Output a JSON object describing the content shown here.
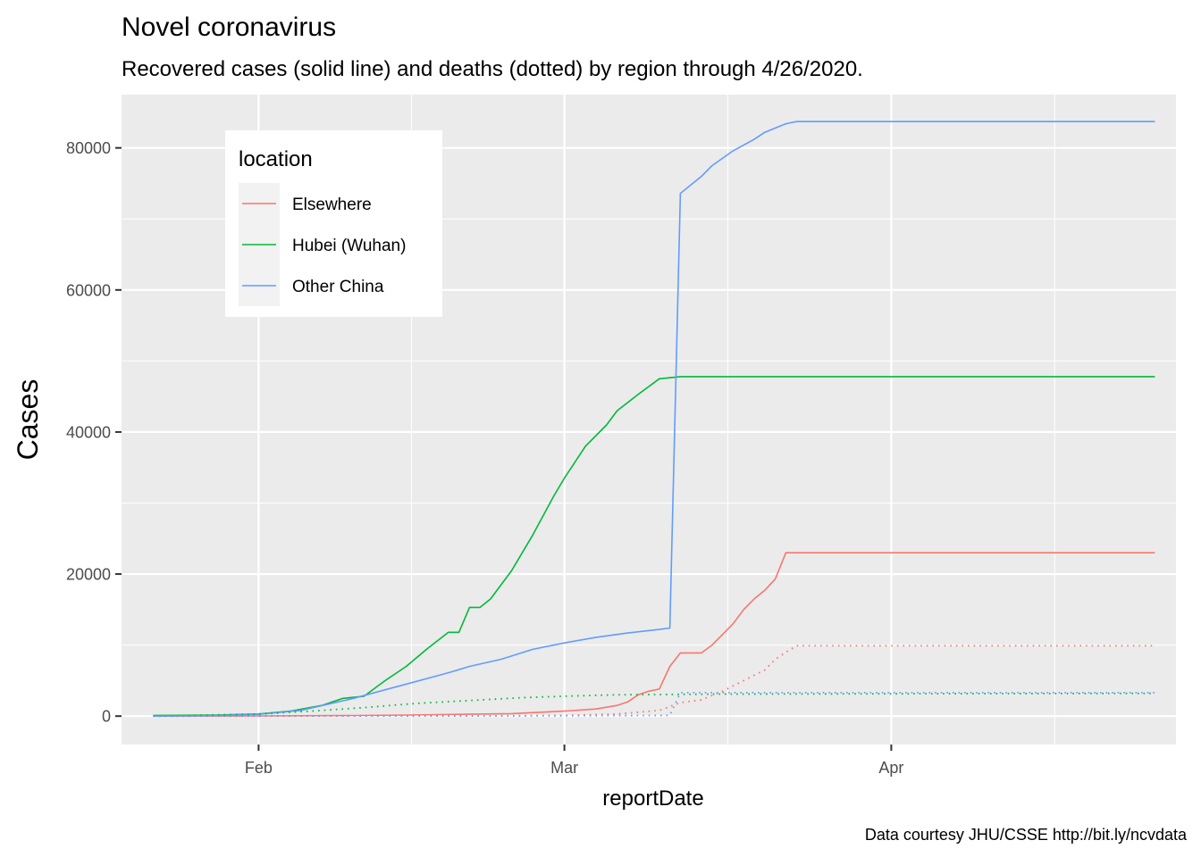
{
  "chart_data": {
    "type": "line",
    "title": "Novel coronavirus",
    "subtitle": "Recovered cases (solid line) and deaths (dotted) by region through 4/26/2020.",
    "xlabel": "reportDate",
    "ylabel": "Cases",
    "caption": "Data courtesy JHU/CSSE http://bit.ly/ncvdata",
    "legend_title": "location",
    "legend_position": "top-left inside",
    "grid": true,
    "xlim": [
      "2020-01-19",
      "2020-04-28"
    ],
    "ylim": [
      -4000,
      87500
    ],
    "x_ticks": [
      {
        "label": "Feb",
        "date": "2020-02-01"
      },
      {
        "label": "Mar",
        "date": "2020-03-01"
      },
      {
        "label": "Apr",
        "date": "2020-04-01"
      }
    ],
    "y_ticks": [
      0,
      20000,
      40000,
      60000,
      80000
    ],
    "series": [
      {
        "name": "Elsewhere",
        "kind": "recovered",
        "color": "#F8766D",
        "style": "solid",
        "points": [
          [
            "2020-01-22",
            0
          ],
          [
            "2020-02-01",
            20
          ],
          [
            "2020-02-10",
            80
          ],
          [
            "2020-02-15",
            150
          ],
          [
            "2020-02-20",
            250
          ],
          [
            "2020-02-25",
            350
          ],
          [
            "2020-03-01",
            700
          ],
          [
            "2020-03-04",
            1000
          ],
          [
            "2020-03-06",
            1500
          ],
          [
            "2020-03-07",
            2000
          ],
          [
            "2020-03-08",
            3000
          ],
          [
            "2020-03-09",
            3500
          ],
          [
            "2020-03-10",
            3800
          ],
          [
            "2020-03-11",
            7000
          ],
          [
            "2020-03-12",
            8900
          ],
          [
            "2020-03-13",
            8900
          ],
          [
            "2020-03-14",
            8900
          ],
          [
            "2020-03-15",
            10000
          ],
          [
            "2020-03-16",
            11500
          ],
          [
            "2020-03-17",
            13000
          ],
          [
            "2020-03-18",
            15000
          ],
          [
            "2020-03-19",
            16500
          ],
          [
            "2020-03-20",
            17700
          ],
          [
            "2020-03-21",
            19300
          ],
          [
            "2020-03-22",
            23000
          ],
          [
            "2020-04-26",
            23000
          ]
        ]
      },
      {
        "name": "Hubei (Wuhan)",
        "kind": "recovered",
        "color": "#00BA38",
        "style": "solid",
        "points": [
          [
            "2020-01-22",
            100
          ],
          [
            "2020-01-28",
            150
          ],
          [
            "2020-02-01",
            300
          ],
          [
            "2020-02-04",
            700
          ],
          [
            "2020-02-07",
            1500
          ],
          [
            "2020-02-09",
            2500
          ],
          [
            "2020-02-11",
            2800
          ],
          [
            "2020-02-13",
            5000
          ],
          [
            "2020-02-15",
            7000
          ],
          [
            "2020-02-17",
            9500
          ],
          [
            "2020-02-19",
            11800
          ],
          [
            "2020-02-20",
            11800
          ],
          [
            "2020-02-21",
            15300
          ],
          [
            "2020-02-22",
            15300
          ],
          [
            "2020-02-23",
            16500
          ],
          [
            "2020-02-25",
            20500
          ],
          [
            "2020-02-27",
            25500
          ],
          [
            "2020-02-29",
            31000
          ],
          [
            "2020-03-01",
            33500
          ],
          [
            "2020-03-03",
            38000
          ],
          [
            "2020-03-05",
            41000
          ],
          [
            "2020-03-06",
            43000
          ],
          [
            "2020-03-08",
            45300
          ],
          [
            "2020-03-10",
            47500
          ],
          [
            "2020-03-12",
            47800
          ],
          [
            "2020-04-26",
            47800
          ]
        ]
      },
      {
        "name": "Other China",
        "kind": "recovered",
        "color": "#619CFF",
        "style": "solid",
        "points": [
          [
            "2020-01-22",
            0
          ],
          [
            "2020-01-28",
            80
          ],
          [
            "2020-02-01",
            250
          ],
          [
            "2020-02-05",
            800
          ],
          [
            "2020-02-10",
            2500
          ],
          [
            "2020-02-13",
            3700
          ],
          [
            "2020-02-16",
            4900
          ],
          [
            "2020-02-19",
            6100
          ],
          [
            "2020-02-21",
            7000
          ],
          [
            "2020-02-24",
            8000
          ],
          [
            "2020-02-27",
            9400
          ],
          [
            "2020-03-01",
            10300
          ],
          [
            "2020-03-04",
            11100
          ],
          [
            "2020-03-07",
            11700
          ],
          [
            "2020-03-10",
            12200
          ],
          [
            "2020-03-11",
            12400
          ],
          [
            "2020-03-12",
            73600
          ],
          [
            "2020-03-14",
            76000
          ],
          [
            "2020-03-15",
            77500
          ],
          [
            "2020-03-17",
            79600
          ],
          [
            "2020-03-19",
            81200
          ],
          [
            "2020-03-20",
            82200
          ],
          [
            "2020-03-22",
            83400
          ],
          [
            "2020-03-23",
            83700
          ],
          [
            "2020-04-26",
            83700
          ]
        ]
      },
      {
        "name": "Elsewhere",
        "kind": "deaths",
        "color": "#F8766D",
        "style": "dotted",
        "points": [
          [
            "2020-01-22",
            0
          ],
          [
            "2020-02-20",
            10
          ],
          [
            "2020-03-01",
            100
          ],
          [
            "2020-03-06",
            300
          ],
          [
            "2020-03-10",
            800
          ],
          [
            "2020-03-12",
            1900
          ],
          [
            "2020-03-14",
            2300
          ],
          [
            "2020-03-16",
            3500
          ],
          [
            "2020-03-18",
            5000
          ],
          [
            "2020-03-20",
            6500
          ],
          [
            "2020-03-21",
            8000
          ],
          [
            "2020-03-22",
            9000
          ],
          [
            "2020-03-23",
            9900
          ],
          [
            "2020-04-26",
            9900
          ]
        ]
      },
      {
        "name": "Hubei (Wuhan)",
        "kind": "deaths",
        "color": "#00BA38",
        "style": "dotted",
        "points": [
          [
            "2020-01-22",
            20
          ],
          [
            "2020-02-01",
            300
          ],
          [
            "2020-02-06",
            700
          ],
          [
            "2020-02-11",
            1200
          ],
          [
            "2020-02-16",
            1800
          ],
          [
            "2020-02-21",
            2200
          ],
          [
            "2020-02-26",
            2600
          ],
          [
            "2020-03-01",
            2800
          ],
          [
            "2020-03-06",
            3000
          ],
          [
            "2020-03-11",
            3050
          ],
          [
            "2020-03-16",
            3100
          ],
          [
            "2020-04-26",
            3200
          ]
        ]
      },
      {
        "name": "Other China",
        "kind": "deaths",
        "color": "#619CFF",
        "style": "dotted",
        "points": [
          [
            "2020-01-22",
            0
          ],
          [
            "2020-03-01",
            50
          ],
          [
            "2020-03-11",
            100
          ],
          [
            "2020-03-12",
            3300
          ],
          [
            "2020-04-26",
            3300
          ]
        ]
      }
    ],
    "legend": [
      {
        "name": "Elsewhere",
        "color": "#F8766D"
      },
      {
        "name": "Hubei (Wuhan)",
        "color": "#00BA38"
      },
      {
        "name": "Other China",
        "color": "#619CFF"
      }
    ]
  }
}
